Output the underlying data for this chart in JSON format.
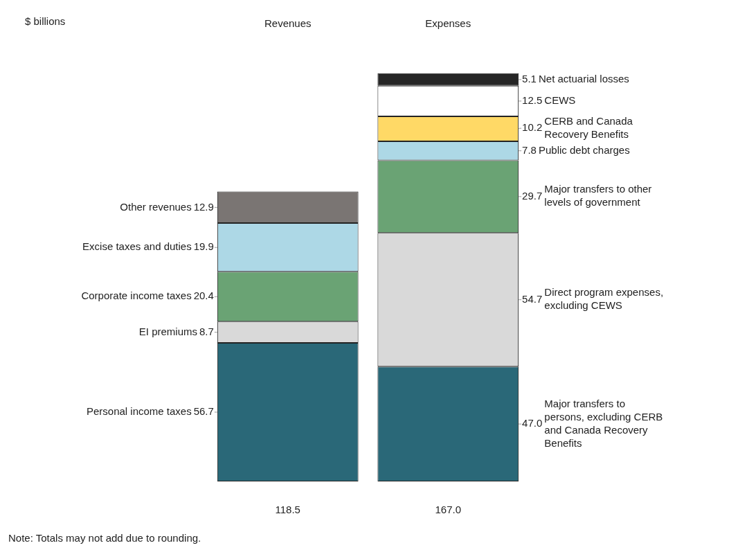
{
  "chart_data": {
    "type": "bar",
    "stacked": true,
    "categories": [
      "Revenues",
      "Expenses"
    ],
    "series": [
      {
        "name": "Personal income taxes",
        "color": "#2a6878",
        "values": [
          56.7,
          null
        ],
        "value_labels": [
          "56.7",
          null
        ]
      },
      {
        "name": "EI premiums",
        "color": "#d9d9d9",
        "values": [
          8.7,
          null
        ],
        "value_labels": [
          "8.7",
          null
        ]
      },
      {
        "name": "Corporate income taxes",
        "color": "#6aa374",
        "values": [
          20.4,
          null
        ],
        "value_labels": [
          "20.4",
          null
        ]
      },
      {
        "name": "Excise taxes and duties",
        "color": "#add8e6",
        "values": [
          19.9,
          null
        ],
        "value_labels": [
          "19.9",
          null
        ]
      },
      {
        "name": "Other revenues",
        "color": "#7a7573",
        "values": [
          12.9,
          null
        ],
        "value_labels": [
          "12.9",
          null
        ]
      },
      {
        "name": "Major transfers to persons, excluding CERB and Canada Recovery Benefits",
        "color": "#2a6878",
        "values": [
          null,
          47.0
        ],
        "value_labels": [
          null,
          "47.0"
        ]
      },
      {
        "name": "Direct program expenses, excluding CEWS",
        "color": "#d9d9d9",
        "values": [
          null,
          54.7
        ],
        "value_labels": [
          null,
          "54.7"
        ]
      },
      {
        "name": "Major transfers to other levels of government",
        "color": "#6aa374",
        "values": [
          null,
          29.7
        ],
        "value_labels": [
          null,
          "29.7"
        ]
      },
      {
        "name": "Public debt charges",
        "color": "#add8e6",
        "values": [
          null,
          7.8
        ],
        "value_labels": [
          null,
          "7.8"
        ]
      },
      {
        "name": "CERB and Canada Recovery Benefits",
        "color": "#ffd966",
        "values": [
          null,
          10.2
        ],
        "value_labels": [
          null,
          "10.2"
        ]
      },
      {
        "name": "CEWS",
        "color": "#ffffff",
        "values": [
          null,
          12.5
        ],
        "value_labels": [
          null,
          "12.5"
        ]
      },
      {
        "name": "Net actuarial losses",
        "color": "#262626",
        "values": [
          null,
          5.1
        ],
        "value_labels": [
          null,
          "5.1"
        ]
      }
    ],
    "totals": [
      "118.5",
      "167.0"
    ],
    "tick_labels": "x",
    "grid": false,
    "legend": false,
    "annotations": [
      "$ billions",
      "Note: Totals may not add due to rounding."
    ]
  }
}
